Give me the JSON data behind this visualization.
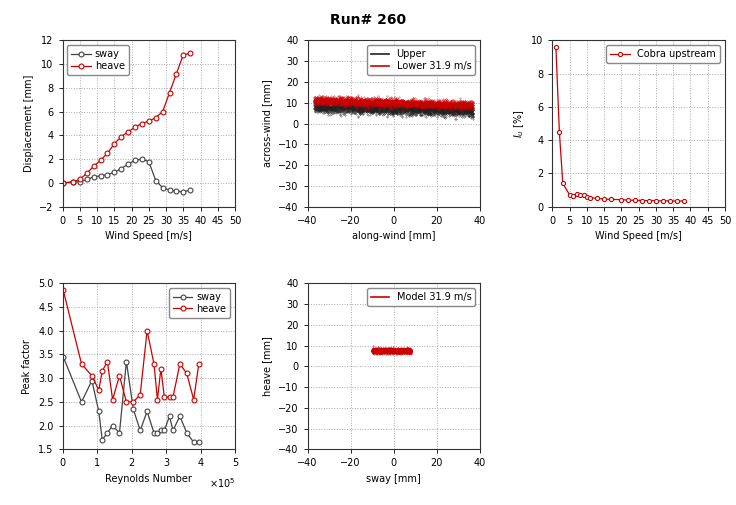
{
  "title": "Run# 260",
  "sway_ws": [
    0,
    3,
    5,
    7,
    9,
    11,
    13,
    15,
    17,
    19,
    21,
    23,
    25,
    27,
    29,
    31,
    33,
    35,
    37
  ],
  "sway_disp": [
    0.0,
    0.05,
    0.1,
    0.3,
    0.5,
    0.6,
    0.7,
    0.9,
    1.2,
    1.6,
    1.9,
    2.0,
    1.8,
    0.2,
    -0.4,
    -0.6,
    -0.7,
    -0.75,
    -0.6
  ],
  "heave_ws": [
    0,
    3,
    5,
    7,
    9,
    11,
    13,
    15,
    17,
    19,
    21,
    23,
    25,
    27,
    29,
    31,
    33,
    35,
    37
  ],
  "heave_disp": [
    0.0,
    0.1,
    0.3,
    0.8,
    1.4,
    1.9,
    2.5,
    3.3,
    3.9,
    4.3,
    4.7,
    5.0,
    5.2,
    5.5,
    6.0,
    7.6,
    9.2,
    10.8,
    10.9
  ],
  "cobra_ws": [
    1,
    2,
    3,
    5,
    6,
    7,
    8,
    9,
    10,
    11,
    13,
    15,
    17,
    20,
    22,
    24,
    26,
    28,
    30,
    32,
    34,
    36,
    38
  ],
  "cobra_Iu": [
    9.6,
    4.5,
    1.4,
    0.7,
    0.65,
    0.75,
    0.72,
    0.68,
    0.6,
    0.55,
    0.5,
    0.46,
    0.44,
    0.42,
    0.4,
    0.38,
    0.37,
    0.36,
    0.36,
    0.35,
    0.35,
    0.34,
    0.34
  ],
  "sway_Re": [
    2000,
    55000,
    85000,
    105000,
    115000,
    130000,
    145000,
    165000,
    185000,
    205000,
    225000,
    245000,
    265000,
    275000,
    285000,
    295000,
    310000,
    320000,
    340000,
    360000,
    380000,
    395000
  ],
  "sway_pf": [
    3.45,
    2.5,
    2.95,
    2.3,
    1.7,
    1.85,
    2.0,
    1.85,
    3.35,
    2.35,
    1.9,
    2.3,
    1.85,
    1.85,
    1.9,
    1.9,
    2.2,
    1.9,
    2.2,
    1.85,
    1.65,
    1.65
  ],
  "heave_Re": [
    2000,
    55000,
    85000,
    105000,
    115000,
    130000,
    145000,
    165000,
    185000,
    205000,
    225000,
    245000,
    265000,
    275000,
    285000,
    295000,
    310000,
    320000,
    340000,
    360000,
    380000,
    395000
  ],
  "heave_pf": [
    4.85,
    3.3,
    3.05,
    2.75,
    3.15,
    3.35,
    2.55,
    3.05,
    2.5,
    2.5,
    2.65,
    4.0,
    3.3,
    2.55,
    3.2,
    2.6,
    2.6,
    2.6,
    3.3,
    3.1,
    2.55,
    3.3
  ],
  "color_sway": "#444444",
  "color_heave": "#cc0000",
  "color_upper": "#222222",
  "color_lower": "#cc0000",
  "color_cobra": "#cc0000",
  "color_model": "#cc0000",
  "bg_color": "#ffffff"
}
